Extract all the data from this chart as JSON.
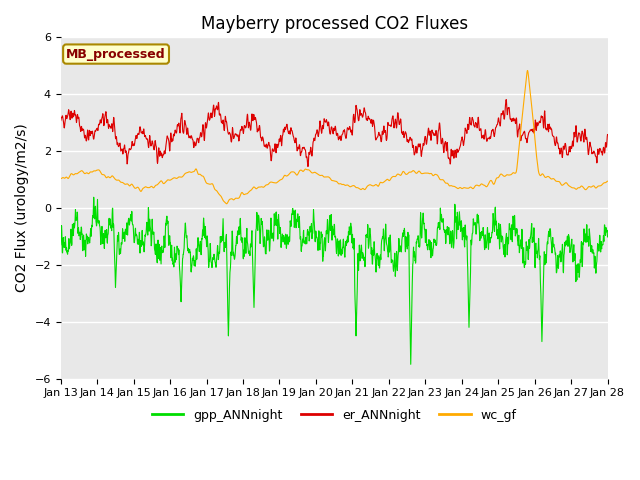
{
  "title": "Mayberry processed CO2 Fluxes",
  "ylabel": "CO2 Flux (urology/m2/s)",
  "xlabel": "",
  "ylim": [
    -6,
    6
  ],
  "yticks": [
    -6,
    -4,
    -2,
    0,
    2,
    4,
    6
  ],
  "x_tick_labels": [
    "Jan 13",
    "Jan 14",
    "Jan 15",
    "Jan 16",
    "Jan 17",
    "Jan 18",
    "Jan 19",
    "Jan 20",
    "Jan 21",
    "Jan 22",
    "Jan 23",
    "Jan 24",
    "Jan 25",
    "Jan 26",
    "Jan 27",
    "Jan 28"
  ],
  "series": {
    "gpp_ANNnight": {
      "color": "#00dd00",
      "label": "gpp_ANNnight"
    },
    "er_ANNnight": {
      "color": "#dd0000",
      "label": "er_ANNnight"
    },
    "wc_gf": {
      "color": "#ffaa00",
      "label": "wc_gf"
    }
  },
  "legend_box_label": "MB_processed",
  "legend_box_text_color": "#880000",
  "legend_box_bg": "#ffffcc",
  "legend_box_edge": "#aa8800",
  "bg_color": "#e8e8e8",
  "title_fontsize": 12,
  "axis_fontsize": 10,
  "tick_fontsize": 8,
  "linewidth": 0.8,
  "n_points": 2160,
  "random_seed": 42
}
